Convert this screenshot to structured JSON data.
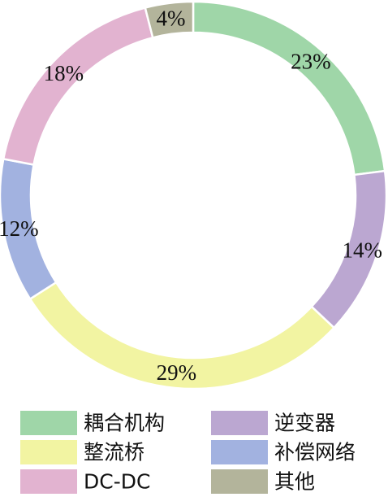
{
  "chart_data": {
    "type": "pie",
    "title": "",
    "donut": true,
    "slices": [
      {
        "label": "耦合机构",
        "value": 23,
        "display": "23%",
        "color": "#9fd6a8"
      },
      {
        "label": "逆变器",
        "value": 14,
        "display": "14%",
        "color": "#bba7d1"
      },
      {
        "label": "整流桥",
        "value": 29,
        "display": "29%",
        "color": "#f2f4a2"
      },
      {
        "label": "补偿网络",
        "value": 12,
        "display": "12%",
        "color": "#a2b2e0"
      },
      {
        "label": "DC-DC",
        "value": 18,
        "display": "18%",
        "color": "#e2b3d0"
      },
      {
        "label": "其他",
        "value": 4,
        "display": "4%",
        "color": "#b3b49b"
      }
    ],
    "legend": {
      "placement": "bottom",
      "columns": 2,
      "order": [
        "耦合机构",
        "逆变器",
        "整流桥",
        "补偿网络",
        "DC-DC",
        "其他"
      ]
    }
  }
}
